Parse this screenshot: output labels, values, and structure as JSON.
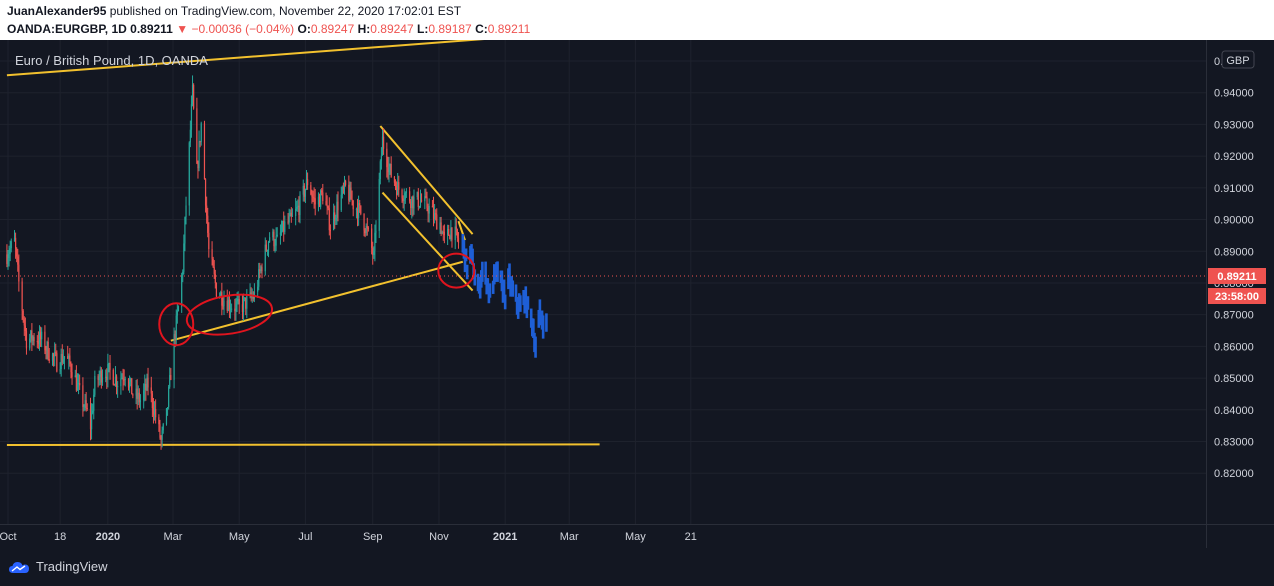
{
  "header": {
    "author": "JuanAlexander95",
    "published_text": "published on TradingView.com, November 22, 2020 17:02:01 EST",
    "symbol": "OANDA:EURGBP, 1D",
    "last": "0.89211",
    "change_arrow": "▼",
    "change": "−0.00036 (−0.04%)",
    "o_label": "O:",
    "o_value": "0.89247",
    "h_label": "H:",
    "h_value": "0.89247",
    "l_label": "L:",
    "l_value": "0.89187",
    "c_label": "C:",
    "c_value": "0.89211"
  },
  "chart_title": "Euro / British Pound, 1D, OANDA",
  "currency_badge": "GBP",
  "price_label": "0.89211",
  "countdown_label": "23:58:00",
  "footer": {
    "brand": "TradingView"
  },
  "colors": {
    "background": "#131722",
    "up": "#26a69a",
    "down": "#ef5350",
    "trendline": "#f2c12e",
    "projection": "#1e5fd6",
    "annotation": "#e0141e"
  },
  "chart_data": {
    "type": "candlestick",
    "title": "Euro / British Pound, 1D, OANDA",
    "yaxis_ticks": [
      "0.95000",
      "0.94000",
      "0.93000",
      "0.92000",
      "0.91000",
      "0.90000",
      "0.89000",
      "0.88000",
      "0.87000",
      "0.86000",
      "0.85000",
      "0.84000",
      "0.83000",
      "0.82000"
    ],
    "xaxis_ticks": [
      "Oct",
      "18",
      "2020",
      "Mar",
      "May",
      "Jul",
      "Sep",
      "Nov",
      "2021",
      "Mar",
      "May",
      "21"
    ],
    "ylim": [
      0.8174,
      0.9629
    ],
    "last_price": 0.89211,
    "price_path": [
      {
        "date": "2019-09-30",
        "price": 0.889
      },
      {
        "date": "2019-10-07",
        "price": 0.893
      },
      {
        "date": "2019-10-11",
        "price": 0.88
      },
      {
        "date": "2019-10-14",
        "price": 0.872
      },
      {
        "date": "2019-10-18",
        "price": 0.862
      },
      {
        "date": "2019-10-25",
        "price": 0.863
      },
      {
        "date": "2019-11-01",
        "price": 0.862
      },
      {
        "date": "2019-11-08",
        "price": 0.858
      },
      {
        "date": "2019-11-15",
        "price": 0.855
      },
      {
        "date": "2019-11-22",
        "price": 0.857
      },
      {
        "date": "2019-11-29",
        "price": 0.853
      },
      {
        "date": "2019-12-06",
        "price": 0.845
      },
      {
        "date": "2019-12-13",
        "price": 0.839
      },
      {
        "date": "2019-12-16",
        "price": 0.835
      },
      {
        "date": "2019-12-20",
        "price": 0.848
      },
      {
        "date": "2019-12-27",
        "price": 0.852
      },
      {
        "date": "2020-01-03",
        "price": 0.852
      },
      {
        "date": "2020-01-10",
        "price": 0.849
      },
      {
        "date": "2020-01-17",
        "price": 0.852
      },
      {
        "date": "2020-01-24",
        "price": 0.845
      },
      {
        "date": "2020-01-31",
        "price": 0.843
      },
      {
        "date": "2020-02-07",
        "price": 0.848
      },
      {
        "date": "2020-02-14",
        "price": 0.838
      },
      {
        "date": "2020-02-19",
        "price": 0.83
      },
      {
        "date": "2020-02-24",
        "price": 0.838
      },
      {
        "date": "2020-03-02",
        "price": 0.862
      },
      {
        "date": "2020-03-06",
        "price": 0.872
      },
      {
        "date": "2020-03-10",
        "price": 0.885
      },
      {
        "date": "2020-03-13",
        "price": 0.905
      },
      {
        "date": "2020-03-19",
        "price": 0.94
      },
      {
        "date": "2020-03-23",
        "price": 0.915
      },
      {
        "date": "2020-03-27",
        "price": 0.93
      },
      {
        "date": "2020-04-03",
        "price": 0.89
      },
      {
        "date": "2020-04-10",
        "price": 0.878
      },
      {
        "date": "2020-04-17",
        "price": 0.875
      },
      {
        "date": "2020-04-24",
        "price": 0.873
      },
      {
        "date": "2020-05-01",
        "price": 0.872
      },
      {
        "date": "2020-05-08",
        "price": 0.874
      },
      {
        "date": "2020-05-15",
        "price": 0.876
      },
      {
        "date": "2020-05-22",
        "price": 0.886
      },
      {
        "date": "2020-05-29",
        "price": 0.895
      },
      {
        "date": "2020-06-05",
        "price": 0.893
      },
      {
        "date": "2020-06-12",
        "price": 0.898
      },
      {
        "date": "2020-06-19",
        "price": 0.9
      },
      {
        "date": "2020-06-26",
        "price": 0.905
      },
      {
        "date": "2020-07-03",
        "price": 0.912
      },
      {
        "date": "2020-07-10",
        "price": 0.905
      },
      {
        "date": "2020-07-17",
        "price": 0.908
      },
      {
        "date": "2020-07-24",
        "price": 0.898
      },
      {
        "date": "2020-07-31",
        "price": 0.905
      },
      {
        "date": "2020-08-07",
        "price": 0.91
      },
      {
        "date": "2020-08-14",
        "price": 0.905
      },
      {
        "date": "2020-08-21",
        "price": 0.902
      },
      {
        "date": "2020-08-28",
        "price": 0.895
      },
      {
        "date": "2020-09-02",
        "price": 0.888
      },
      {
        "date": "2020-09-04",
        "price": 0.898
      },
      {
        "date": "2020-09-10",
        "price": 0.925
      },
      {
        "date": "2020-09-17",
        "price": 0.915
      },
      {
        "date": "2020-09-24",
        "price": 0.91
      },
      {
        "date": "2020-10-01",
        "price": 0.908
      },
      {
        "date": "2020-10-08",
        "price": 0.906
      },
      {
        "date": "2020-10-15",
        "price": 0.906
      },
      {
        "date": "2020-10-22",
        "price": 0.904
      },
      {
        "date": "2020-10-29",
        "price": 0.9
      },
      {
        "date": "2020-11-02",
        "price": 0.899
      },
      {
        "date": "2020-11-06",
        "price": 0.893
      },
      {
        "date": "2020-11-12",
        "price": 0.897
      },
      {
        "date": "2020-11-16",
        "price": 0.895
      },
      {
        "date": "2020-11-20",
        "price": 0.892
      }
    ],
    "projection_path": [
      {
        "date": "2020-11-23",
        "price": 0.892
      },
      {
        "date": "2020-11-27",
        "price": 0.885
      },
      {
        "date": "2020-12-01",
        "price": 0.889
      },
      {
        "date": "2020-12-04",
        "price": 0.882
      },
      {
        "date": "2020-12-08",
        "price": 0.878
      },
      {
        "date": "2020-12-11",
        "price": 0.884
      },
      {
        "date": "2020-12-15",
        "price": 0.881
      },
      {
        "date": "2020-12-18",
        "price": 0.876
      },
      {
        "date": "2020-12-22",
        "price": 0.881
      },
      {
        "date": "2020-12-25",
        "price": 0.884
      },
      {
        "date": "2020-12-29",
        "price": 0.879
      },
      {
        "date": "2021-01-01",
        "price": 0.876
      },
      {
        "date": "2021-01-05",
        "price": 0.881
      },
      {
        "date": "2021-01-08",
        "price": 0.877
      },
      {
        "date": "2021-01-12",
        "price": 0.874
      },
      {
        "date": "2021-01-15",
        "price": 0.872
      },
      {
        "date": "2021-01-19",
        "price": 0.875
      },
      {
        "date": "2021-01-22",
        "price": 0.872
      },
      {
        "date": "2021-01-26",
        "price": 0.868
      },
      {
        "date": "2021-01-29",
        "price": 0.86
      },
      {
        "date": "2021-02-02",
        "price": 0.87
      },
      {
        "date": "2021-02-05",
        "price": 0.868
      },
      {
        "date": "2021-02-09",
        "price": 0.866
      }
    ],
    "trendlines": [
      {
        "kind": "resistance",
        "from": {
          "date": "2019-09-30",
          "price": 0.9455
        },
        "to": {
          "date": "2021-03-29",
          "price": 0.9597
        }
      },
      {
        "kind": "support",
        "from": {
          "date": "2019-09-30",
          "price": 0.8289
        },
        "to": {
          "date": "2021-03-29",
          "price": 0.8291
        }
      },
      {
        "kind": "rising support",
        "from": {
          "date": "2020-02-28",
          "price": 0.8618
        },
        "to": {
          "date": "2020-11-23",
          "price": 0.8867
        }
      },
      {
        "kind": "channel upper",
        "from": {
          "date": "2020-09-08",
          "price": 0.9295
        },
        "to": {
          "date": "2020-12-02",
          "price": 0.8954
        }
      },
      {
        "kind": "channel lower",
        "from": {
          "date": "2020-09-10",
          "price": 0.9085
        },
        "to": {
          "date": "2020-12-02",
          "price": 0.8776
        }
      },
      {
        "kind": "wedge",
        "from": {
          "date": "2020-11-19",
          "price": 0.8995
        },
        "to": {
          "date": "2020-11-25",
          "price": 0.8935
        }
      }
    ],
    "annotations": [
      {
        "type": "circle",
        "date": "2020-03-04",
        "price": 0.867
      },
      {
        "type": "ellipse",
        "date": "2020-04-22",
        "price": 0.87
      },
      {
        "type": "circle",
        "date": "2020-11-17",
        "price": 0.8839
      }
    ]
  }
}
